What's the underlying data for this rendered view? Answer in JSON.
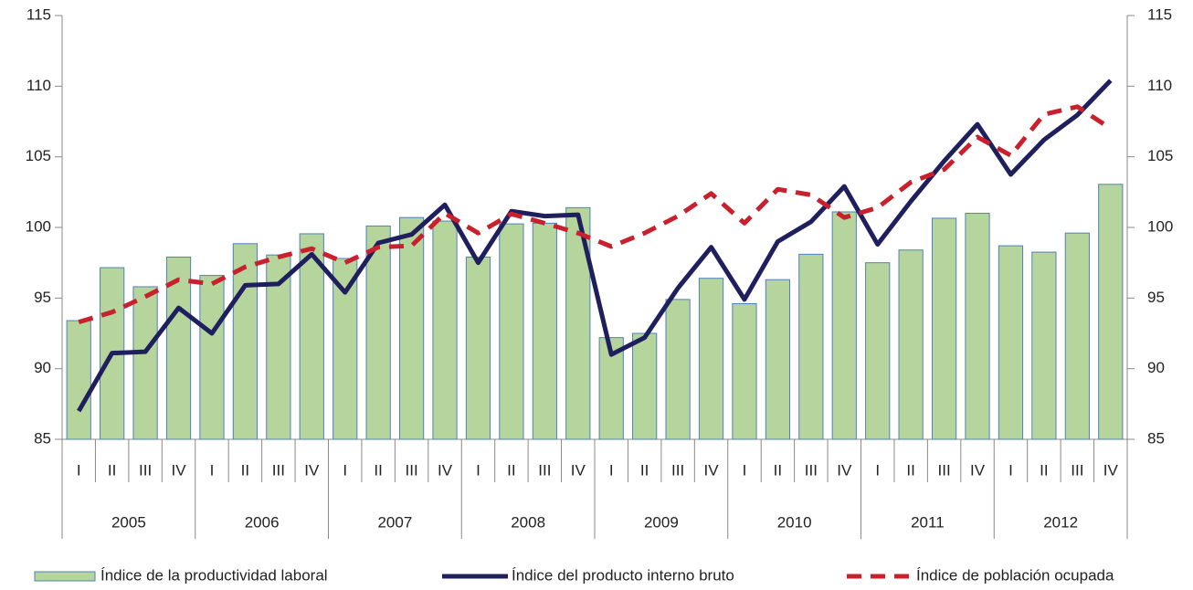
{
  "chart_data": {
    "type": "bar_line",
    "categories": [
      "I",
      "II",
      "III",
      "IV",
      "I",
      "II",
      "III",
      "IV",
      "I",
      "II",
      "III",
      "IV",
      "I",
      "II",
      "III",
      "IV",
      "I",
      "II",
      "III",
      "IV",
      "I",
      "II",
      "III",
      "IV",
      "I",
      "II",
      "III",
      "IV",
      "I",
      "II",
      "III",
      "IV"
    ],
    "years": [
      "2005",
      "2006",
      "2007",
      "2008",
      "2009",
      "2010",
      "2011",
      "2012"
    ],
    "ylim": [
      85,
      115
    ],
    "yticks": [
      85,
      90,
      95,
      100,
      105,
      110,
      115
    ],
    "y2lim": [
      85,
      115
    ],
    "y2ticks": [
      85,
      90,
      95,
      100,
      105,
      110,
      115
    ],
    "grid": false,
    "legend": "bottom",
    "series": [
      {
        "name": "Índice de la productividad laboral",
        "type": "bar",
        "color": "#b5d59c",
        "edge_color": "#4f81bd",
        "values": [
          93.4,
          97.15,
          95.8,
          97.9,
          96.6,
          98.85,
          98.05,
          99.55,
          97.8,
          100.1,
          100.7,
          100.45,
          97.9,
          100.25,
          100.3,
          101.4,
          92.2,
          92.5,
          94.9,
          96.4,
          94.6,
          96.3,
          98.1,
          101.1,
          97.5,
          98.4,
          100.65,
          101,
          98.7,
          98.25,
          99.6,
          103.05
        ]
      },
      {
        "name": "Índice del producto interno bruto",
        "type": "line",
        "color": "#1f1f5e",
        "dashed": false,
        "values": [
          87,
          91.1,
          91.2,
          94.3,
          92.5,
          95.9,
          96,
          98.1,
          95.4,
          98.9,
          99.5,
          101.6,
          97.5,
          101.15,
          100.8,
          100.9,
          91,
          92.2,
          95.7,
          98.6,
          94.9,
          99,
          100.4,
          102.9,
          98.8,
          101.85,
          104.7,
          107.3,
          103.75,
          106.2,
          107.95,
          110.4
        ]
      },
      {
        "name": "Índice de población ocupada",
        "type": "line",
        "color": "#c8202c",
        "dashed": true,
        "values": [
          93.3,
          94,
          95.1,
          96.3,
          96,
          97.2,
          97.9,
          98.5,
          97.5,
          98.6,
          98.7,
          101,
          99.6,
          100.95,
          100.3,
          99.6,
          98.65,
          99.6,
          100.8,
          102.4,
          100.3,
          102.7,
          102.3,
          100.7,
          101.4,
          103.2,
          104.1,
          106.4,
          105.1,
          108,
          108.55,
          107
        ]
      }
    ]
  }
}
